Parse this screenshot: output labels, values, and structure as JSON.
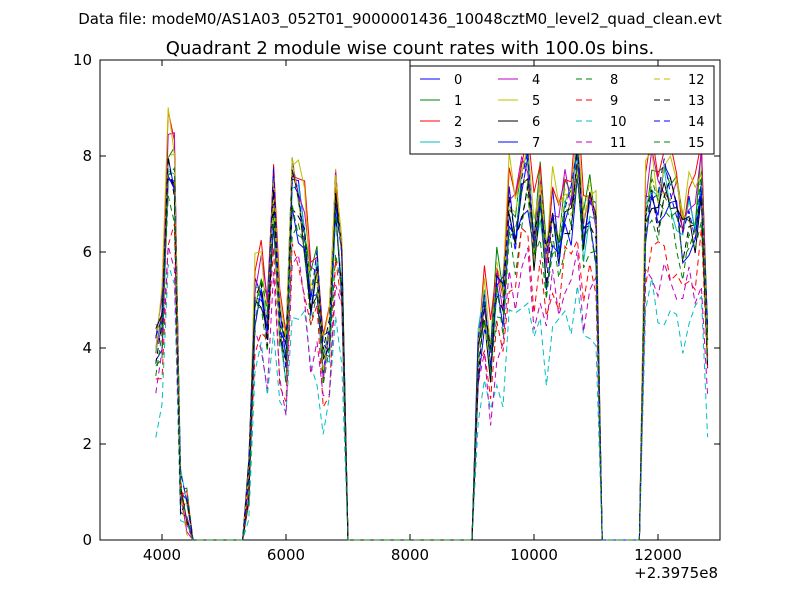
{
  "suptitle": "Data file: modeM0/AS1A03_052T01_9000001436_10048cztM0_level2_quad_clean.evt",
  "chart_data": {
    "type": "line",
    "title": "Quadrant 2 module wise count rates with 100.0s bins.",
    "xlabel": "",
    "ylabel": "",
    "xlim": [
      3000,
      13000
    ],
    "ylim": [
      0,
      10
    ],
    "x_offset_label": "+2.3975e8",
    "x_ticks": [
      4000,
      6000,
      8000,
      10000,
      12000
    ],
    "x_tick_labels": [
      "4000",
      "6000",
      "8000",
      "10000",
      "12000"
    ],
    "y_ticks": [
      0,
      2,
      4,
      6,
      8,
      10
    ],
    "y_tick_labels": [
      "0",
      "2",
      "4",
      "6",
      "8",
      "10"
    ],
    "legend_position": "top-right",
    "x": [
      3900,
      4000,
      4100,
      4200,
      4300,
      4400,
      4500,
      4600,
      4700,
      4800,
      4900,
      5000,
      5100,
      5200,
      5300,
      5400,
      5500,
      5600,
      5700,
      5800,
      5900,
      6000,
      6100,
      6200,
      6300,
      6400,
      6500,
      6600,
      6700,
      6800,
      6900,
      7000,
      7100,
      7200,
      7300,
      7400,
      7500,
      7600,
      7700,
      7800,
      7900,
      8000,
      8100,
      8200,
      8300,
      8400,
      8500,
      8600,
      8700,
      8800,
      8900,
      9000,
      9100,
      9200,
      9300,
      9400,
      9500,
      9600,
      9700,
      9800,
      9900,
      10000,
      10100,
      10200,
      10300,
      10400,
      10500,
      10600,
      10700,
      10800,
      10900,
      11000,
      11100,
      11200,
      11300,
      11400,
      11500,
      11600,
      11700,
      11800,
      11900,
      12000,
      12100,
      12200,
      12300,
      12400,
      12500,
      12600,
      12700,
      12800
    ],
    "base_profile": [
      4.0,
      4.6,
      8.1,
      7.8,
      1.0,
      0.6,
      0,
      0,
      0,
      0,
      0,
      0,
      0,
      0,
      0,
      1.2,
      5.2,
      5.5,
      4.6,
      7.3,
      4.5,
      3.9,
      7.5,
      7.2,
      6.6,
      5.2,
      5.6,
      3.8,
      4.3,
      7.2,
      5.9,
      0,
      0,
      0,
      0,
      0,
      0,
      0,
      0,
      0,
      0,
      0,
      0,
      0,
      0,
      0,
      0,
      0,
      0,
      0,
      0,
      0,
      4.0,
      5.0,
      3.8,
      5.4,
      5.0,
      7.1,
      6.6,
      7.5,
      7.8,
      6.2,
      7.2,
      5.7,
      6.9,
      6.3,
      7.1,
      7.0,
      8.1,
      6.4,
      7.0,
      6.6,
      0,
      0,
      0,
      0,
      0,
      0,
      0,
      7.0,
      7.6,
      7.1,
      7.5,
      7.3,
      7.1,
      6.4,
      6.9,
      6.7,
      7.6,
      4.0
    ],
    "series": [
      {
        "name": "0",
        "color": "#0000ff",
        "style": "solid",
        "scale": 1.0
      },
      {
        "name": "1",
        "color": "#008000",
        "style": "solid",
        "scale": 1.03
      },
      {
        "name": "2",
        "color": "#ff0000",
        "style": "solid",
        "scale": 1.08
      },
      {
        "name": "3",
        "color": "#00bfbf",
        "style": "solid",
        "scale": 0.98
      },
      {
        "name": "4",
        "color": "#bf00bf",
        "style": "solid",
        "scale": 1.02
      },
      {
        "name": "5",
        "color": "#bfbf00",
        "style": "solid",
        "scale": 1.06
      },
      {
        "name": "6",
        "color": "#000000",
        "style": "solid",
        "scale": 0.97
      },
      {
        "name": "7",
        "color": "#0000ff",
        "style": "solid",
        "scale": 0.93
      },
      {
        "name": "8",
        "color": "#008000",
        "style": "dashed",
        "scale": 0.9
      },
      {
        "name": "9",
        "color": "#ff0000",
        "style": "dashed",
        "scale": 0.8
      },
      {
        "name": "10",
        "color": "#00bfbf",
        "style": "dashed",
        "scale": 0.65
      },
      {
        "name": "11",
        "color": "#bf00bf",
        "style": "dashed",
        "scale": 0.75
      },
      {
        "name": "12",
        "color": "#bfbf00",
        "style": "dashed",
        "scale": 1.0
      },
      {
        "name": "13",
        "color": "#000000",
        "style": "dashed",
        "scale": 0.96
      },
      {
        "name": "14",
        "color": "#0000ff",
        "style": "dashed",
        "scale": 0.99
      },
      {
        "name": "15",
        "color": "#008000",
        "style": "dashed",
        "scale": 0.94
      }
    ]
  }
}
